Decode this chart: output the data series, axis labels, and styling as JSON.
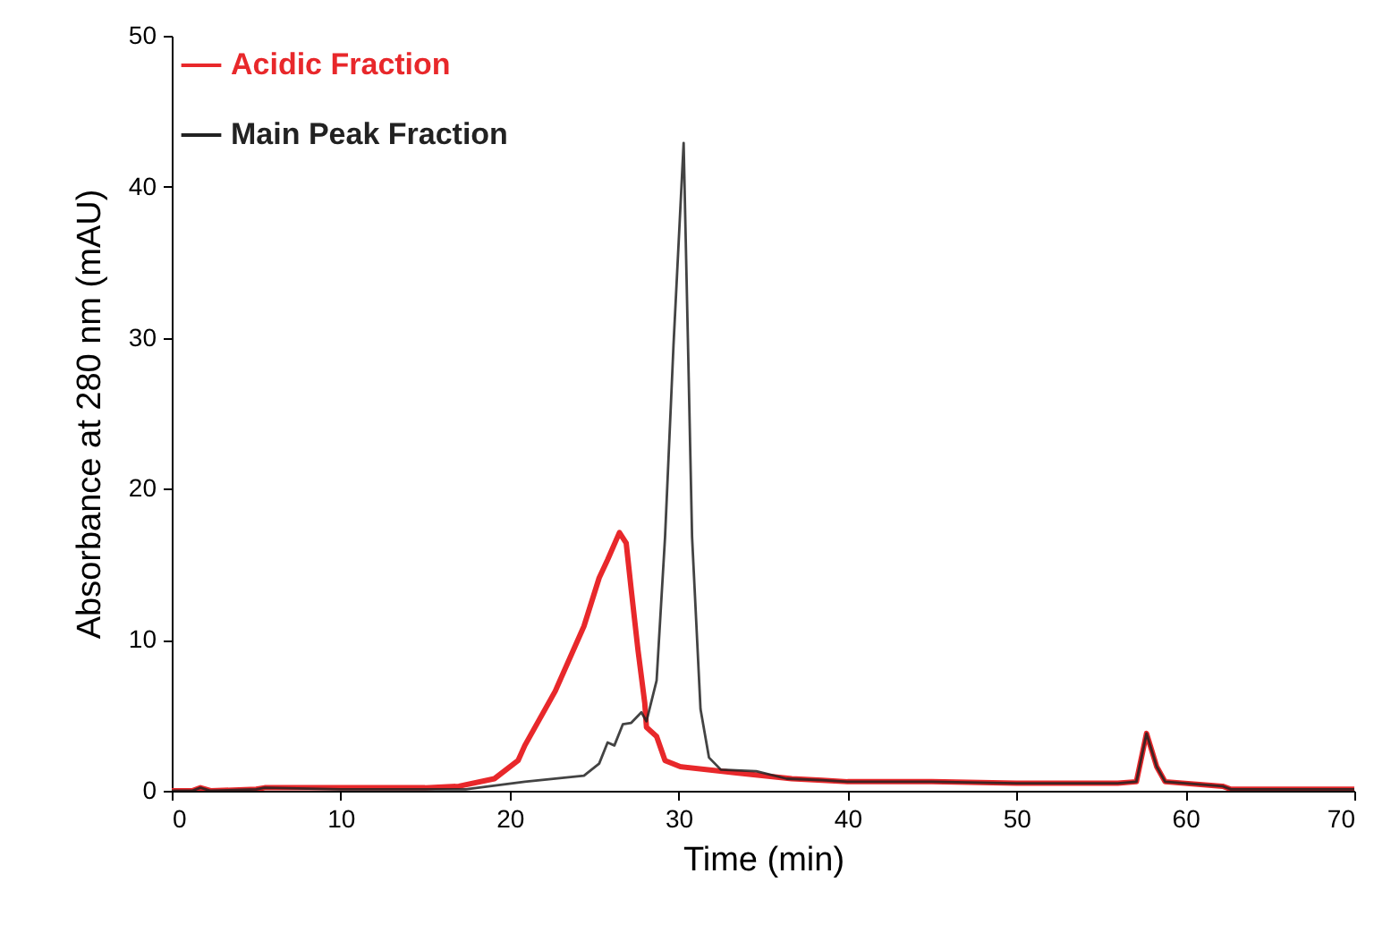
{
  "chart_data": {
    "type": "line",
    "xlabel": "Time (min)",
    "ylabel": "Absorbance at 280 nm (mAU)",
    "xlim": [
      0,
      70
    ],
    "ylim": [
      0,
      50
    ],
    "xticks": [
      0,
      10,
      20,
      30,
      40,
      50,
      60,
      70
    ],
    "yticks": [
      0,
      10,
      20,
      30,
      40,
      50
    ],
    "grid": false,
    "legend": "top left",
    "line_style": "solid",
    "series": [
      {
        "name": "Acidic Fraction",
        "color": "#e8282b",
        "x": [
          0,
          1.2,
          1.7,
          2.3,
          5,
          5.5,
          10,
          15,
          17,
          19.1,
          20.5,
          20.9,
          22.7,
          24.4,
          25.3,
          25.8,
          26.5,
          26.9,
          27.2,
          27.6,
          28.0,
          28.1,
          28.7,
          29.2,
          30.1,
          33.3,
          36.7,
          38.5,
          40,
          45,
          50,
          54,
          56,
          57.1,
          57.7,
          58.3,
          58.8,
          62.2,
          62.7,
          70
        ],
        "values": [
          0,
          0,
          0.2,
          0,
          0.1,
          0.2,
          0.2,
          0.2,
          0.3,
          0.8,
          2.0,
          3.0,
          6.6,
          10.9,
          14.1,
          15.3,
          17.1,
          16.4,
          13.3,
          9.3,
          5.8,
          4.2,
          3.6,
          2.0,
          1.6,
          1.2,
          0.8,
          0.7,
          0.6,
          0.6,
          0.5,
          0.5,
          0.5,
          0.6,
          3.8,
          1.6,
          0.6,
          0.3,
          0.1,
          0.1
        ]
      },
      {
        "name": "Main Peak Fraction",
        "color": "#222222",
        "x": [
          0,
          1.2,
          1.7,
          2.3,
          5,
          5.5,
          10,
          15,
          17.4,
          20.9,
          24.4,
          25.3,
          25.8,
          26.2,
          26.7,
          27.2,
          27.8,
          28.1,
          28.7,
          29.2,
          29.7,
          30.3,
          30.55,
          30.8,
          31.3,
          31.8,
          32.5,
          34.6,
          36.4,
          38.5,
          40,
          45,
          50,
          54,
          56,
          57.1,
          57.7,
          58.3,
          58.8,
          62.2,
          62.7,
          70
        ],
        "values": [
          0,
          0,
          0.2,
          0,
          0.1,
          0.2,
          0.1,
          0.1,
          0.1,
          0.6,
          1.0,
          1.8,
          3.2,
          3.0,
          4.4,
          4.5,
          5.2,
          4.6,
          7.3,
          16.8,
          29.5,
          42.9,
          30,
          16.8,
          5.4,
          2.2,
          1.4,
          1.3,
          0.8,
          0.7,
          0.6,
          0.6,
          0.5,
          0.5,
          0.5,
          0.6,
          3.8,
          1.6,
          0.6,
          0.3,
          0.1,
          0.1
        ]
      }
    ]
  }
}
